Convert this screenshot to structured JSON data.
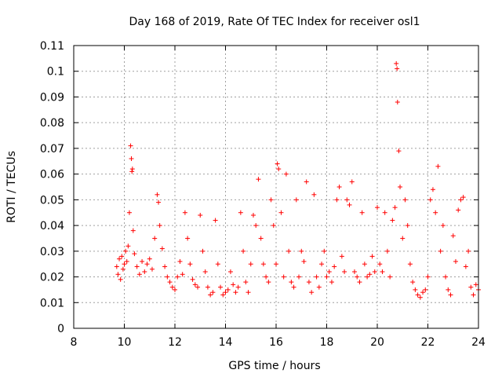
{
  "chart_data": {
    "type": "scatter",
    "title": "Day 168 of 2019, Rate Of TEC Index for receiver osl1",
    "xlabel": "GPS time / hours",
    "ylabel": "ROTI / TECUs",
    "xlim": [
      8,
      24
    ],
    "ylim": [
      0,
      0.11
    ],
    "x_ticks": [
      "8",
      "10",
      "12",
      "14",
      "16",
      "18",
      "20",
      "22",
      "24"
    ],
    "y_ticks": [
      "0",
      "0.01",
      "0.02",
      "0.03",
      "0.04",
      "0.05",
      "0.06",
      "0.07",
      "0.08",
      "0.09",
      "0.1",
      "0.11"
    ],
    "grid": true,
    "marker": "+",
    "color": "#ff0000",
    "series": [
      {
        "name": "ROTI",
        "x": [
          9.7,
          9.75,
          9.8,
          9.85,
          9.9,
          9.95,
          10.0,
          10.05,
          10.1,
          10.15,
          10.2,
          10.25,
          10.28,
          10.3,
          10.32,
          10.35,
          10.4,
          10.5,
          10.6,
          10.7,
          10.8,
          10.9,
          11.0,
          11.1,
          11.2,
          11.3,
          11.35,
          11.4,
          11.5,
          11.6,
          11.7,
          11.8,
          11.9,
          12.0,
          12.1,
          12.2,
          12.3,
          12.4,
          12.5,
          12.6,
          12.7,
          12.8,
          12.9,
          13.0,
          13.1,
          13.2,
          13.3,
          13.4,
          13.5,
          13.6,
          13.7,
          13.8,
          13.9,
          14.0,
          14.1,
          14.2,
          14.3,
          14.4,
          14.5,
          14.6,
          14.7,
          14.8,
          14.9,
          15.0,
          15.1,
          15.2,
          15.3,
          15.4,
          15.5,
          15.6,
          15.7,
          15.8,
          15.9,
          16.0,
          16.05,
          16.1,
          16.2,
          16.3,
          16.4,
          16.5,
          16.6,
          16.7,
          16.8,
          16.9,
          17.0,
          17.1,
          17.2,
          17.3,
          17.4,
          17.5,
          17.6,
          17.7,
          17.8,
          17.9,
          18.0,
          18.1,
          18.2,
          18.3,
          18.4,
          18.5,
          18.6,
          18.7,
          18.8,
          18.9,
          19.0,
          19.1,
          19.2,
          19.3,
          19.4,
          19.5,
          19.6,
          19.7,
          19.8,
          19.9,
          20.0,
          20.1,
          20.2,
          20.3,
          20.4,
          20.5,
          20.6,
          20.7,
          20.75,
          20.78,
          20.8,
          20.85,
          20.9,
          21.0,
          21.1,
          21.2,
          21.3,
          21.4,
          21.5,
          21.6,
          21.7,
          21.8,
          21.9,
          22.0,
          22.1,
          22.2,
          22.3,
          22.4,
          22.5,
          22.6,
          22.7,
          22.8,
          22.9,
          23.0,
          23.1,
          23.2,
          23.3,
          23.4,
          23.5,
          23.6,
          23.7,
          23.8,
          23.9,
          24.0
        ],
        "y": [
          0.024,
          0.021,
          0.027,
          0.019,
          0.028,
          0.023,
          0.025,
          0.03,
          0.026,
          0.032,
          0.045,
          0.071,
          0.066,
          0.061,
          0.062,
          0.038,
          0.029,
          0.024,
          0.021,
          0.026,
          0.022,
          0.025,
          0.027,
          0.023,
          0.035,
          0.052,
          0.049,
          0.04,
          0.031,
          0.024,
          0.02,
          0.018,
          0.016,
          0.015,
          0.02,
          0.026,
          0.021,
          0.045,
          0.035,
          0.025,
          0.019,
          0.017,
          0.016,
          0.044,
          0.03,
          0.022,
          0.016,
          0.013,
          0.014,
          0.042,
          0.025,
          0.016,
          0.013,
          0.014,
          0.015,
          0.022,
          0.017,
          0.014,
          0.016,
          0.045,
          0.03,
          0.018,
          0.014,
          0.025,
          0.044,
          0.04,
          0.058,
          0.035,
          0.025,
          0.02,
          0.018,
          0.05,
          0.04,
          0.025,
          0.064,
          0.062,
          0.045,
          0.02,
          0.06,
          0.03,
          0.018,
          0.016,
          0.05,
          0.02,
          0.03,
          0.026,
          0.057,
          0.018,
          0.014,
          0.052,
          0.02,
          0.016,
          0.025,
          0.03,
          0.02,
          0.022,
          0.018,
          0.024,
          0.05,
          0.055,
          0.028,
          0.022,
          0.05,
          0.048,
          0.057,
          0.022,
          0.02,
          0.018,
          0.045,
          0.025,
          0.02,
          0.021,
          0.028,
          0.022,
          0.047,
          0.025,
          0.022,
          0.045,
          0.03,
          0.02,
          0.042,
          0.047,
          0.103,
          0.101,
          0.088,
          0.069,
          0.055,
          0.035,
          0.05,
          0.04,
          0.025,
          0.018,
          0.015,
          0.013,
          0.012,
          0.014,
          0.015,
          0.02,
          0.05,
          0.054,
          0.045,
          0.063,
          0.03,
          0.04,
          0.02,
          0.015,
          0.013,
          0.036,
          0.026,
          0.046,
          0.05,
          0.051,
          0.024,
          0.03,
          0.016,
          0.013,
          0.017,
          0.015
        ]
      }
    ]
  }
}
